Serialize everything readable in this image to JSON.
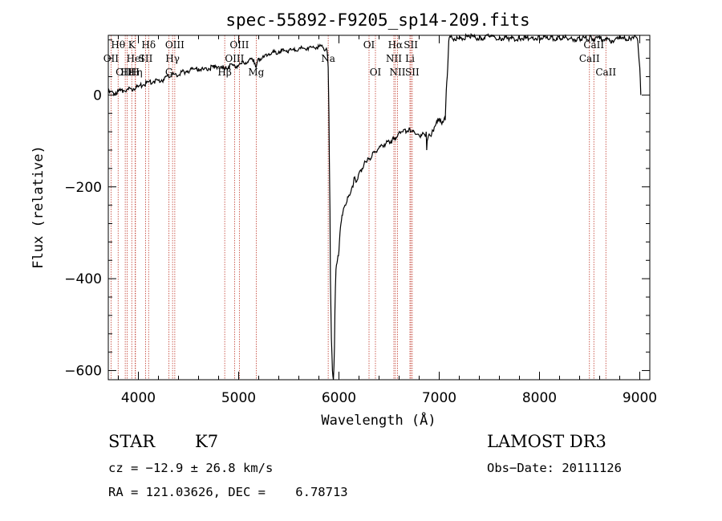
{
  "chart_data": {
    "type": "line",
    "title": "spec-55892-F9205_sp14-209.fits",
    "xlabel": "Wavelength (Å)",
    "ylabel": "Flux (relative)",
    "xlim": [
      3700,
      9100
    ],
    "ylim": [
      -620,
      130
    ],
    "xticks": [
      4000,
      5000,
      6000,
      7000,
      8000,
      9000
    ],
    "yticks": [
      0,
      -200,
      -400,
      -600
    ],
    "series": [
      {
        "name": "flux",
        "x": [
          3700,
          3750,
          3800,
          3850,
          3900,
          3950,
          4000,
          4050,
          4100,
          4150,
          4200,
          4250,
          4300,
          4340,
          4380,
          4420,
          4480,
          4550,
          4600,
          4650,
          4700,
          4760,
          4800,
          4861,
          4900,
          4950,
          5000,
          5050,
          5100,
          5150,
          5175,
          5200,
          5250,
          5300,
          5350,
          5400,
          5450,
          5500,
          5550,
          5600,
          5650,
          5700,
          5750,
          5800,
          5840,
          5870,
          5885,
          5893,
          5900,
          5910,
          5915,
          5925,
          5935,
          5945,
          5950,
          5955,
          5960,
          5965,
          5970,
          5975,
          5985,
          5995,
          6000,
          6005,
          6010,
          6020,
          6030,
          6040,
          6060,
          6080,
          6100,
          6120,
          6140,
          6150,
          6170,
          6200,
          6230,
          6250,
          6270,
          6300,
          6330,
          6360,
          6400,
          6430,
          6470,
          6500,
          6530,
          6563,
          6590,
          6620,
          6650,
          6680,
          6700,
          6720,
          6750,
          6780,
          6800,
          6830,
          6860,
          6870,
          6875,
          6880,
          6900,
          6920,
          6950,
          6980,
          7000,
          7020,
          7050,
          7060,
          7070,
          7080,
          7090,
          7095,
          7100,
          7150,
          7200,
          7300,
          7400,
          7500,
          7600,
          7700,
          7800,
          7900,
          8000,
          8100,
          8200,
          8300,
          8400,
          8500,
          8542,
          8600,
          8662,
          8700,
          8800,
          8900,
          8950,
          8980,
          9000,
          9010
        ],
        "y": [
          5,
          5,
          8,
          10,
          12,
          14,
          18,
          22,
          28,
          30,
          32,
          34,
          40,
          45,
          43,
          48,
          52,
          56,
          58,
          55,
          58,
          60,
          62,
          55,
          62,
          64,
          65,
          70,
          76,
          78,
          60,
          80,
          82,
          90,
          92,
          95,
          96,
          98,
          98,
          100,
          102,
          104,
          103,
          105,
          103,
          100,
          90,
          60,
          -40,
          -250,
          -400,
          -530,
          -600,
          -620,
          -590,
          -550,
          -470,
          -420,
          -380,
          -370,
          -360,
          -350,
          -340,
          -320,
          -300,
          -280,
          -262,
          -255,
          -240,
          -232,
          -218,
          -210,
          -200,
          -180,
          -190,
          -170,
          -160,
          -150,
          -145,
          -140,
          -132,
          -125,
          -115,
          -110,
          -105,
          -100,
          -100,
          -92,
          -85,
          -80,
          -75,
          -78,
          -72,
          -80,
          -80,
          -85,
          -88,
          -85,
          -90,
          -80,
          -120,
          -100,
          -85,
          -90,
          -70,
          -60,
          -50,
          -60,
          -50,
          -55,
          10,
          40,
          90,
          118,
          125,
          123,
          122,
          128,
          124,
          127,
          125,
          122,
          124,
          123,
          126,
          122,
          125,
          123,
          122,
          125,
          121,
          123,
          124,
          118,
          122,
          124,
          130,
          118,
          60,
          0
        ]
      }
    ],
    "line_markers": [
      {
        "label": "Hθ",
        "x": 3798,
        "row": 0
      },
      {
        "label": "OII",
        "x": 3727,
        "row": 1
      },
      {
        "label": "OIII",
        "x": 3869,
        "row": 2
      },
      {
        "label": "Hε",
        "x": 3889,
        "row": 2
      },
      {
        "label": "K",
        "x": 3934,
        "row": 0
      },
      {
        "label": "HeI",
        "x": 3970,
        "row": 1
      },
      {
        "label": "Hη",
        "x": 3970,
        "row": 2
      },
      {
        "label": "Hδ",
        "x": 4102,
        "row": 0
      },
      {
        "label": "SII",
        "x": 4072,
        "row": 1
      },
      {
        "label": "H",
        "x": 3969,
        "row": 2
      },
      {
        "label": "OIII",
        "x": 4363,
        "row": 0
      },
      {
        "label": "Hγ",
        "x": 4341,
        "row": 1
      },
      {
        "label": "G",
        "x": 4305,
        "row": 2
      },
      {
        "label": "Hβ",
        "x": 4861,
        "row": 2
      },
      {
        "label": "OIII",
        "x": 5007,
        "row": 0
      },
      {
        "label": "OIII",
        "x": 4959,
        "row": 1
      },
      {
        "label": "Mg",
        "x": 5175,
        "row": 2
      },
      {
        "label": "Na",
        "x": 5893,
        "row": 1
      },
      {
        "label": "OI",
        "x": 6300,
        "row": 0
      },
      {
        "label": "OI",
        "x": 6364,
        "row": 2
      },
      {
        "label": "Hα",
        "x": 6563,
        "row": 0
      },
      {
        "label": "NII",
        "x": 6548,
        "row": 1
      },
      {
        "label": "NII",
        "x": 6584,
        "row": 2
      },
      {
        "label": "SII",
        "x": 6717,
        "row": 0
      },
      {
        "label": "Li",
        "x": 6708,
        "row": 1
      },
      {
        "label": "SII",
        "x": 6731,
        "row": 2
      },
      {
        "label": "CaII",
        "x": 8542,
        "row": 0
      },
      {
        "label": "CaII",
        "x": 8498,
        "row": 1
      },
      {
        "label": "CaII",
        "x": 8662,
        "row": 2
      }
    ],
    "grid": false,
    "legend": "none"
  },
  "info": {
    "class": "STAR",
    "subclass": "K7",
    "survey": "LAMOST DR3",
    "cz": "cz = −12.9 ± 26.8 km/s",
    "obs_date": "Obs−Date: 20111126",
    "coords": "RA = 121.03626, DEC =    6.78713"
  },
  "colors": {
    "line_marker": "#c0392b",
    "spectrum": "#000000",
    "axis": "#000000"
  }
}
